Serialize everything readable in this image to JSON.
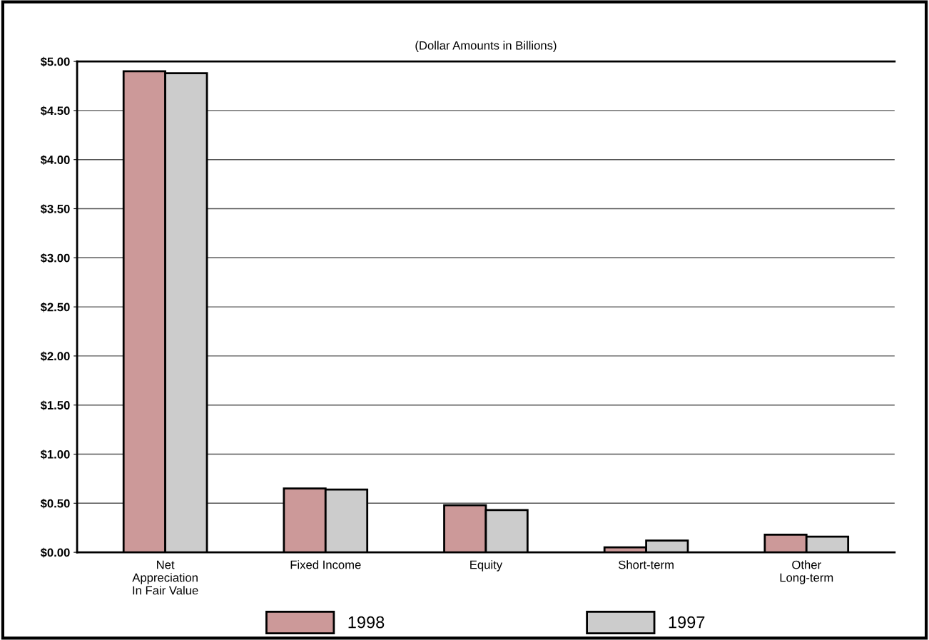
{
  "chart_data": {
    "type": "bar",
    "title": "(Dollar Amounts in Billions)",
    "categories": [
      "Net\nAppreciation\nIn Fair Value",
      "Fixed Income",
      "Equity",
      "Short-term",
      "Other\nLong-term"
    ],
    "series": [
      {
        "name": "1998",
        "color": "#cc9999",
        "values": [
          4.9,
          0.65,
          0.48,
          0.05,
          0.18
        ]
      },
      {
        "name": "1997",
        "color": "#cccccc",
        "values": [
          4.88,
          0.64,
          0.43,
          0.12,
          0.16
        ]
      }
    ],
    "ylim": [
      0,
      5
    ],
    "yticks": [
      {
        "value": 0,
        "label": "$0.00"
      },
      {
        "value": 0.5,
        "label": "$0.50"
      },
      {
        "value": 1,
        "label": "$1.00"
      },
      {
        "value": 1.5,
        "label": "$1.50"
      },
      {
        "value": 2,
        "label": "$2.00"
      },
      {
        "value": 2.5,
        "label": "$2.50"
      },
      {
        "value": 3,
        "label": "$3.00"
      },
      {
        "value": 3.5,
        "label": "$3.50"
      },
      {
        "value": 4,
        "label": "$4.00"
      },
      {
        "value": 4.5,
        "label": "$4.50"
      },
      {
        "value": 5,
        "label": "$5.00"
      }
    ],
    "grid": "y",
    "legend": "bottom"
  }
}
